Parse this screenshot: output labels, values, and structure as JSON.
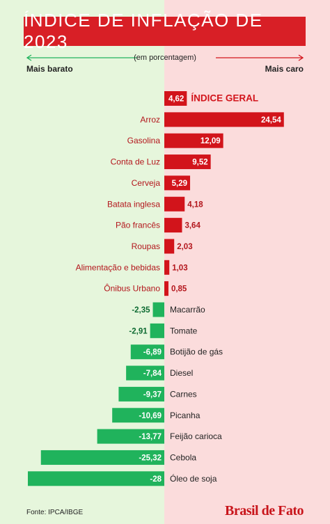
{
  "header": {
    "title": "ÍNDICE DE INFLAÇÃO DE 2023",
    "unit_note": "(em porcentagem)",
    "left_label": "Mais barato",
    "right_label": "Mais caro"
  },
  "footer": {
    "source": "Fonte: IPCA/IBGE",
    "brand": "Brasil de Fato"
  },
  "colors": {
    "title_bg": "#d81f26",
    "positive": "#d2141b",
    "positive_label": "#b3161c",
    "negative": "#20b35c",
    "negative_label": "#0d6b32",
    "bg_left": "#e6f6dc",
    "bg_right": "#fbdcdc"
  },
  "chart_data": {
    "type": "bar",
    "orientation": "horizontal",
    "grid": false,
    "categories": [
      "ÍNDICE GERAL",
      "Arroz",
      "Gasolina",
      "Conta de Luz",
      "Cerveja",
      "Batata inglesa",
      "Pão francês",
      "Roupas",
      "Alimentação e bebidas",
      "Ônibus Urbano",
      "Macarrão",
      "Tomate",
      "Botijão de gás",
      "Diesel",
      "Carnes",
      "Picanha",
      "Feijão carioca",
      "Cebola",
      "Óleo de soja"
    ],
    "values": [
      4.62,
      24.54,
      12.09,
      9.52,
      5.29,
      4.18,
      3.64,
      2.03,
      1.03,
      0.85,
      -2.35,
      -2.91,
      -6.89,
      -7.84,
      -9.37,
      -10.69,
      -13.77,
      -25.32,
      -28
    ],
    "value_labels": [
      "4,62",
      "24,54",
      "12,09",
      "9,52",
      "5,29",
      "4,18",
      "3,64",
      "2,03",
      "1,03",
      "0,85",
      "-2,35",
      "-2,91",
      "-6,89",
      "-7,84",
      "-9,37",
      "-10,69",
      "-13,77",
      "-25,32",
      "-28"
    ]
  }
}
